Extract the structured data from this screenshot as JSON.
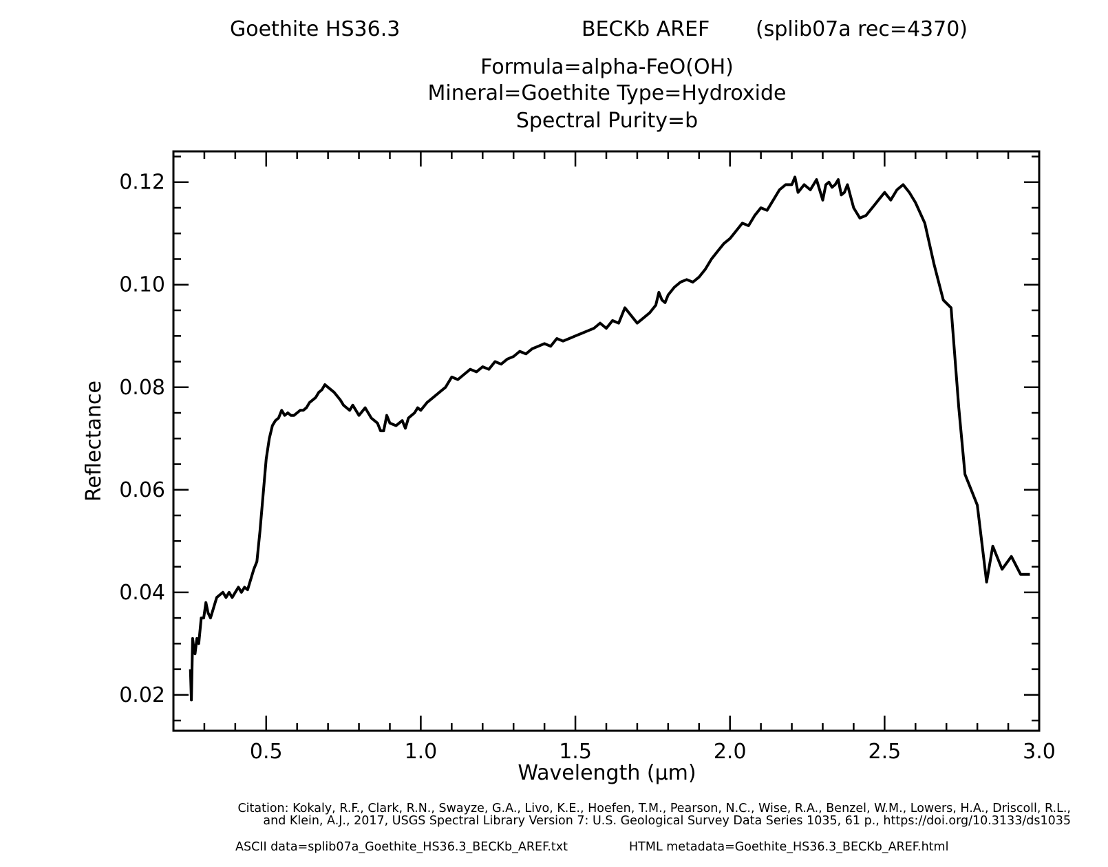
{
  "header": {
    "sample_name": "Goethite HS36.3",
    "measurement": "BECKb AREF",
    "record": "(splib07a rec=4370)",
    "formula": "Formula=alpha-FeO(OH)",
    "mineral_type": "Mineral=Goethite  Type=Hydroxide",
    "purity": "Spectral Purity=b"
  },
  "footer": {
    "citation_line1": "Citation: Kokaly, R.F., Clark, R.N., Swayze, G.A., Livo, K.E., Hoefen, T.M., Pearson, N.C., Wise, R.A., Benzel, W.M., Lowers, H.A., Driscoll, R.L.,",
    "citation_line2": "and Klein, A.J., 2017, USGS Spectral Library Version 7: U.S. Geological Survey Data Series 1035, 61 p., https://doi.org/10.3133/ds1035",
    "ascii_data": "ASCII data=splib07a_Goethite_HS36.3_BECKb_AREF.txt",
    "html_metadata": "HTML metadata=Goethite_HS36.3_BECKb_AREF.html"
  },
  "colors": {
    "line": "#000000",
    "background": "#ffffff"
  },
  "chart_data": {
    "type": "line",
    "xlabel": "Wavelength (μm)",
    "ylabel": "Reflectance",
    "xlim": [
      0.2,
      3.0
    ],
    "ylim": [
      0.013,
      0.126
    ],
    "xticks": [
      {
        "value": 0.5,
        "label": "0.5"
      },
      {
        "value": 1.0,
        "label": "1.0"
      },
      {
        "value": 1.5,
        "label": "1.5"
      },
      {
        "value": 2.0,
        "label": "2.0"
      },
      {
        "value": 2.5,
        "label": "2.5"
      },
      {
        "value": 3.0,
        "label": "3.0"
      }
    ],
    "yticks": [
      {
        "value": 0.02,
        "label": "0.02"
      },
      {
        "value": 0.04,
        "label": "0.04"
      },
      {
        "value": 0.06,
        "label": "0.06"
      },
      {
        "value": 0.08,
        "label": "0.08"
      },
      {
        "value": 0.1,
        "label": "0.10"
      },
      {
        "value": 0.12,
        "label": "0.12"
      }
    ],
    "x_minor_step": 0.1,
    "y_minor_step": 0.005,
    "grid": false,
    "series": [
      {
        "name": "Goethite HS36.3 BECKb AREF",
        "x": [
          0.255,
          0.258,
          0.262,
          0.266,
          0.27,
          0.276,
          0.282,
          0.29,
          0.298,
          0.305,
          0.312,
          0.32,
          0.33,
          0.34,
          0.35,
          0.36,
          0.37,
          0.38,
          0.39,
          0.4,
          0.41,
          0.42,
          0.43,
          0.44,
          0.45,
          0.46,
          0.47,
          0.48,
          0.49,
          0.5,
          0.51,
          0.52,
          0.53,
          0.54,
          0.55,
          0.56,
          0.57,
          0.58,
          0.59,
          0.6,
          0.61,
          0.62,
          0.63,
          0.64,
          0.65,
          0.66,
          0.67,
          0.68,
          0.69,
          0.7,
          0.72,
          0.74,
          0.75,
          0.76,
          0.77,
          0.78,
          0.8,
          0.82,
          0.84,
          0.85,
          0.86,
          0.87,
          0.88,
          0.89,
          0.9,
          0.92,
          0.94,
          0.95,
          0.96,
          0.97,
          0.98,
          0.99,
          1.0,
          1.02,
          1.04,
          1.06,
          1.08,
          1.1,
          1.12,
          1.14,
          1.16,
          1.18,
          1.2,
          1.22,
          1.24,
          1.26,
          1.28,
          1.3,
          1.32,
          1.34,
          1.36,
          1.38,
          1.4,
          1.42,
          1.44,
          1.46,
          1.48,
          1.5,
          1.52,
          1.54,
          1.56,
          1.58,
          1.6,
          1.62,
          1.64,
          1.66,
          1.68,
          1.7,
          1.72,
          1.74,
          1.76,
          1.77,
          1.78,
          1.79,
          1.8,
          1.82,
          1.84,
          1.86,
          1.88,
          1.9,
          1.92,
          1.94,
          1.96,
          1.98,
          2.0,
          2.02,
          2.04,
          2.06,
          2.08,
          2.1,
          2.12,
          2.14,
          2.16,
          2.18,
          2.2,
          2.21,
          2.22,
          2.24,
          2.26,
          2.28,
          2.3,
          2.31,
          2.32,
          2.33,
          2.34,
          2.35,
          2.36,
          2.37,
          2.38,
          2.4,
          2.42,
          2.44,
          2.46,
          2.48,
          2.5,
          2.52,
          2.54,
          2.56,
          2.58,
          2.6,
          2.63,
          2.66,
          2.69,
          2.715,
          2.74,
          2.76,
          2.78,
          2.8,
          2.83,
          2.85,
          2.88,
          2.91,
          2.94,
          2.97
        ],
        "y": [
          0.025,
          0.019,
          0.031,
          0.029,
          0.028,
          0.031,
          0.03,
          0.035,
          0.035,
          0.038,
          0.036,
          0.035,
          0.037,
          0.039,
          0.0395,
          0.04,
          0.039,
          0.04,
          0.039,
          0.04,
          0.041,
          0.04,
          0.041,
          0.0405,
          0.0425,
          0.0445,
          0.046,
          0.052,
          0.059,
          0.066,
          0.07,
          0.0725,
          0.0735,
          0.074,
          0.0755,
          0.0745,
          0.075,
          0.0745,
          0.0745,
          0.075,
          0.0755,
          0.0755,
          0.076,
          0.077,
          0.0775,
          0.078,
          0.079,
          0.0795,
          0.0805,
          0.08,
          0.079,
          0.0775,
          0.0765,
          0.076,
          0.0755,
          0.0765,
          0.0745,
          0.076,
          0.074,
          0.0735,
          0.073,
          0.0715,
          0.0715,
          0.0745,
          0.073,
          0.0725,
          0.0735,
          0.072,
          0.074,
          0.0745,
          0.075,
          0.076,
          0.0755,
          0.077,
          0.078,
          0.079,
          0.08,
          0.082,
          0.0815,
          0.0825,
          0.0835,
          0.083,
          0.084,
          0.0835,
          0.085,
          0.0845,
          0.0855,
          0.086,
          0.087,
          0.0865,
          0.0875,
          0.088,
          0.0885,
          0.088,
          0.0895,
          0.089,
          0.0895,
          0.09,
          0.0905,
          0.091,
          0.0915,
          0.0925,
          0.0915,
          0.093,
          0.0925,
          0.0955,
          0.094,
          0.0925,
          0.0935,
          0.0945,
          0.096,
          0.0985,
          0.097,
          0.0965,
          0.098,
          0.0995,
          0.1005,
          0.101,
          0.1005,
          0.1015,
          0.103,
          0.105,
          0.1065,
          0.108,
          0.109,
          0.1105,
          0.112,
          0.1115,
          0.1135,
          0.115,
          0.1145,
          0.1165,
          0.1185,
          0.1195,
          0.1195,
          0.121,
          0.118,
          0.1195,
          0.1185,
          0.1205,
          0.1165,
          0.1195,
          0.12,
          0.119,
          0.1195,
          0.1205,
          0.1175,
          0.118,
          0.1195,
          0.115,
          0.113,
          0.1135,
          0.115,
          0.1165,
          0.118,
          0.1165,
          0.1185,
          0.1195,
          0.118,
          0.116,
          0.112,
          0.104,
          0.097,
          0.0955,
          0.076,
          0.063,
          0.06,
          0.057,
          0.042,
          0.049,
          0.0445,
          0.047,
          0.0435,
          0.0435
        ]
      }
    ]
  }
}
